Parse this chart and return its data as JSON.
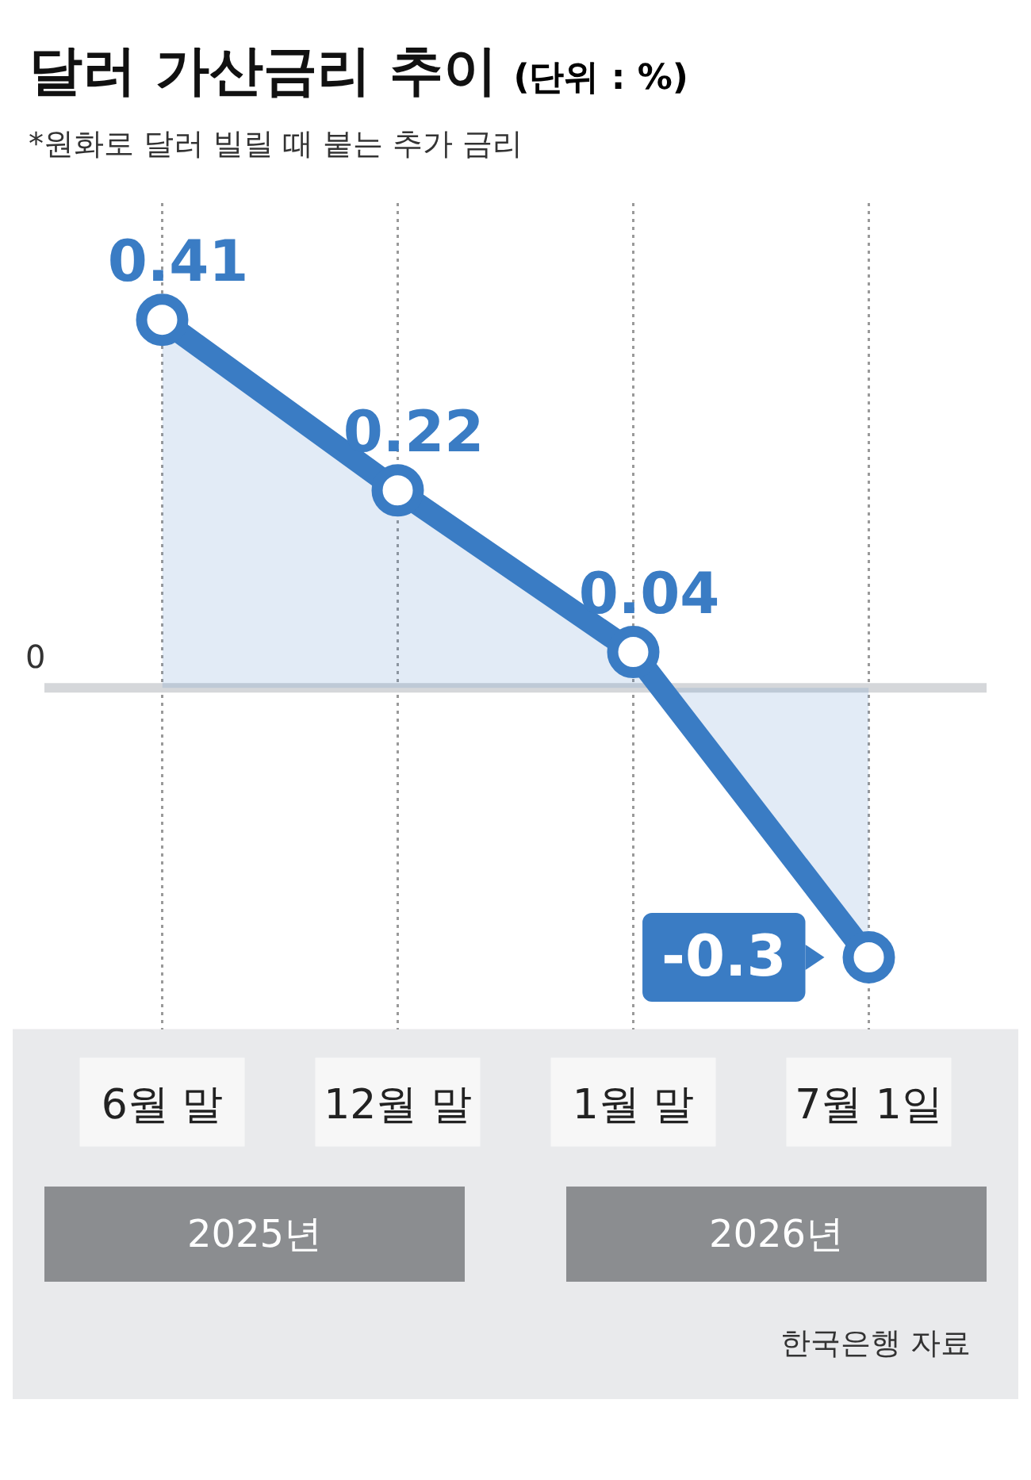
{
  "chart_data": {
    "type": "area",
    "title": "달러 가산금리 추이",
    "subtitle": "*원화로 달러 빌릴 때 붙는 추가 금리",
    "categories": [
      "6월 말",
      "12월 말",
      "1월 말",
      "7월 1일"
    ],
    "series": [
      {
        "color": "#3a7cc4",
        "values": [
          0.41,
          0.22,
          0.04,
          -0.3
        ]
      }
    ],
    "ylim": [
      -0.38,
      0.54
    ],
    "tick_labels": "x",
    "grid": "x",
    "marker": "circle",
    "line_style": "solid",
    "data_labels": true,
    "ref_lines": [
      {
        "axis": "y",
        "value": 0,
        "label": "0",
        "color": "#d5d7da"
      }
    ],
    "annotations": [
      "(단위 : %)",
      "2025년",
      "2026년",
      "한국은행 자료"
    ]
  }
}
